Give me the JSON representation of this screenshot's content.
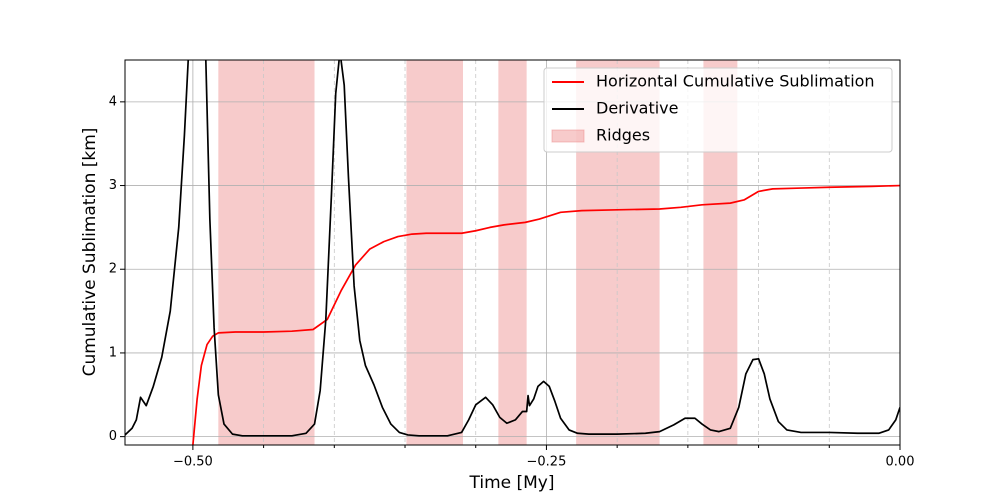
{
  "chart_data": {
    "type": "line",
    "xlabel": "Time [My]",
    "ylabel": "Cumulative Sublimation [km]",
    "xlim": [
      -0.548,
      0
    ],
    "ylim": [
      -0.1,
      4.5
    ],
    "xticks": [
      {
        "value": -0.5,
        "label": "−0.50"
      },
      {
        "value": -0.25,
        "label": "−0.25"
      },
      {
        "value": 0,
        "label": "0.00"
      }
    ],
    "xminorticks": [
      -0.45,
      -0.4,
      -0.35,
      -0.3,
      -0.2,
      -0.15,
      -0.1,
      -0.05
    ],
    "yticks": [
      0,
      1,
      2,
      3,
      4
    ],
    "grid": true,
    "legend": "upper right",
    "series": [
      {
        "name": "Horizontal Cumulative Sublimation",
        "color": "#ff0000",
        "x": [
          -0.5,
          -0.497,
          -0.494,
          -0.49,
          -0.486,
          -0.482,
          -0.47,
          -0.45,
          -0.43,
          -0.415,
          -0.405,
          -0.395,
          -0.385,
          -0.375,
          -0.365,
          -0.355,
          -0.345,
          -0.335,
          -0.32,
          -0.31,
          -0.3,
          -0.29,
          -0.28,
          -0.265,
          -0.255,
          -0.24,
          -0.225,
          -0.2,
          -0.17,
          -0.155,
          -0.14,
          -0.12,
          -0.11,
          -0.1,
          -0.09,
          -0.07,
          -0.05,
          -0.02,
          0
        ],
        "values": [
          -0.1,
          0.45,
          0.85,
          1.1,
          1.2,
          1.24,
          1.25,
          1.25,
          1.26,
          1.28,
          1.4,
          1.75,
          2.05,
          2.24,
          2.33,
          2.39,
          2.42,
          2.43,
          2.43,
          2.43,
          2.46,
          2.5,
          2.53,
          2.56,
          2.6,
          2.68,
          2.7,
          2.71,
          2.72,
          2.74,
          2.77,
          2.79,
          2.83,
          2.93,
          2.96,
          2.97,
          2.98,
          2.99,
          3.0
        ]
      },
      {
        "name": "Derivative",
        "color": "#000000",
        "x": [
          -0.548,
          -0.543,
          -0.54,
          -0.537,
          -0.535,
          -0.533,
          -0.528,
          -0.522,
          -0.516,
          -0.51,
          -0.506,
          -0.503,
          -0.491,
          -0.488,
          -0.485,
          -0.482,
          -0.478,
          -0.472,
          -0.465,
          -0.45,
          -0.43,
          -0.42,
          -0.414,
          -0.41,
          -0.406,
          -0.402,
          -0.399,
          -0.396,
          -0.393,
          -0.39,
          -0.386,
          -0.382,
          -0.378,
          -0.372,
          -0.366,
          -0.36,
          -0.354,
          -0.348,
          -0.34,
          -0.32,
          -0.31,
          -0.305,
          -0.3,
          -0.293,
          -0.288,
          -0.283,
          -0.278,
          -0.272,
          -0.267,
          -0.264,
          -0.263,
          -0.262,
          -0.259,
          -0.256,
          -0.252,
          -0.248,
          -0.244,
          -0.24,
          -0.234,
          -0.228,
          -0.22,
          -0.2,
          -0.18,
          -0.17,
          -0.16,
          -0.152,
          -0.145,
          -0.14,
          -0.134,
          -0.128,
          -0.12,
          -0.114,
          -0.109,
          -0.104,
          -0.1,
          -0.096,
          -0.092,
          -0.086,
          -0.08,
          -0.07,
          -0.05,
          -0.03,
          -0.015,
          -0.008,
          -0.003,
          0
        ],
        "values": [
          0.02,
          0.1,
          0.2,
          0.47,
          0.42,
          0.37,
          0.6,
          0.95,
          1.5,
          2.5,
          3.6,
          4.6,
          4.6,
          2.6,
          1.3,
          0.5,
          0.15,
          0.03,
          0.01,
          0.01,
          0.01,
          0.04,
          0.15,
          0.55,
          1.4,
          2.9,
          4.1,
          4.6,
          4.2,
          3.1,
          1.8,
          1.15,
          0.85,
          0.62,
          0.35,
          0.15,
          0.05,
          0.02,
          0.01,
          0.01,
          0.05,
          0.2,
          0.38,
          0.47,
          0.38,
          0.23,
          0.16,
          0.2,
          0.3,
          0.3,
          0.49,
          0.37,
          0.45,
          0.6,
          0.66,
          0.6,
          0.42,
          0.22,
          0.08,
          0.04,
          0.03,
          0.03,
          0.04,
          0.06,
          0.14,
          0.22,
          0.22,
          0.15,
          0.08,
          0.06,
          0.1,
          0.35,
          0.75,
          0.92,
          0.93,
          0.75,
          0.45,
          0.18,
          0.08,
          0.05,
          0.05,
          0.04,
          0.04,
          0.08,
          0.2,
          0.35
        ]
      }
    ],
    "spans": {
      "name": "Ridges",
      "color": "#ee8c8c",
      "ranges": [
        [
          -0.482,
          -0.414
        ],
        [
          -0.349,
          -0.309
        ],
        [
          -0.284,
          -0.264
        ],
        [
          -0.229,
          -0.17
        ],
        [
          -0.139,
          -0.115
        ]
      ]
    }
  }
}
